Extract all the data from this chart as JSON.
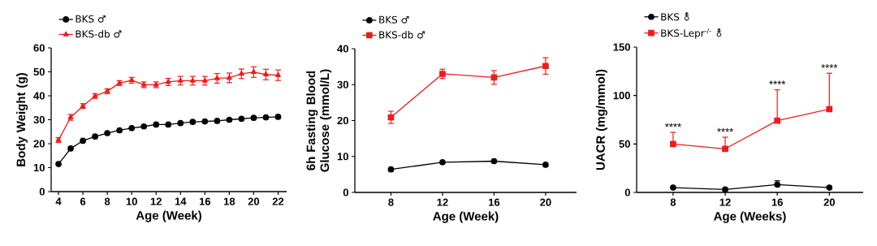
{
  "chart_data": [
    {
      "type": "line",
      "xlabel": "Age (Week)",
      "ylabel": "Body Weight (g)",
      "xlim": [
        3.4,
        22.7
      ],
      "ylim": [
        0,
        60
      ],
      "xticks": [
        4,
        6,
        8,
        10,
        12,
        14,
        16,
        18,
        20,
        22
      ],
      "yticks": [
        0,
        10,
        20,
        30,
        40,
        50,
        60
      ],
      "legend": "top left",
      "grid": false,
      "x": [
        4,
        5,
        6,
        7,
        8,
        9,
        10,
        11,
        12,
        13,
        14,
        15,
        16,
        17,
        18,
        19,
        20,
        21,
        22
      ],
      "series": [
        {
          "name": "BKS ♂",
          "color": "#000000",
          "marker": "circle",
          "values": [
            11.5,
            18,
            21.2,
            23,
            24.4,
            25.6,
            26.5,
            27.2,
            28,
            28,
            28.6,
            29.1,
            29.3,
            29.5,
            30,
            30.4,
            30.8,
            31,
            31.2
          ]
        },
        {
          "name": "BKS-db ♂",
          "color": "#ee1c1c",
          "marker": "triangle",
          "values": [
            21.5,
            31,
            35.7,
            39.9,
            41.9,
            45.3,
            46.5,
            44.6,
            44.6,
            45.8,
            46.3,
            46.3,
            46.3,
            47.3,
            47.5,
            49.2,
            49.9,
            48.9,
            48.6
          ],
          "errors": [
            1,
            1.2,
            1,
            1,
            1,
            1,
            1.2,
            1.2,
            1.2,
            1.5,
            1.8,
            1.8,
            1.8,
            2,
            2,
            2,
            2.2,
            2.2,
            2.2
          ]
        }
      ]
    },
    {
      "type": "line",
      "xlabel": "Age (Week)",
      "ylabel": "6h Fasting Blood Glucose (mmol/L)",
      "xlim": [
        5.2,
        22.4
      ],
      "ylim": [
        0,
        40
      ],
      "xticks": [
        8,
        12,
        16,
        20
      ],
      "yticks": [
        0,
        10,
        20,
        30,
        40
      ],
      "legend": "top left",
      "grid": false,
      "x": [
        8,
        12,
        16,
        20
      ],
      "series": [
        {
          "name": "BKS ♂",
          "color": "#000000",
          "marker": "circle",
          "values": [
            6.4,
            8.4,
            8.7,
            7.7
          ]
        },
        {
          "name": "BKS-db ♂",
          "color": "#ee1c1c",
          "marker": "square",
          "values": [
            20.9,
            33,
            32,
            35.2
          ],
          "errors": [
            1.7,
            1.3,
            1.9,
            2.3
          ]
        }
      ]
    },
    {
      "type": "line",
      "xlabel": "Age (Weeks)",
      "ylabel": "UACR (mg/mmol)",
      "xlim": [
        5.2,
        22.6
      ],
      "ylim": [
        0,
        150
      ],
      "xticks": [
        8,
        12,
        16,
        20
      ],
      "yticks": [
        0,
        50,
        100,
        150
      ],
      "legend": "top left",
      "grid": false,
      "x": [
        8,
        12,
        16,
        20
      ],
      "series": [
        {
          "name": "BKS ⚨",
          "color": "#000000",
          "marker": "circle",
          "values": [
            5,
            3,
            8,
            5
          ],
          "errors": [
            null,
            null,
            [
              8,
              12
            ],
            null
          ]
        },
        {
          "name": "BKS-Lepr$^{-/-}$ ⚨",
          "color": "#ee1c1c",
          "marker": "square",
          "values": [
            50,
            45,
            74,
            86
          ],
          "errors": [
            [
              50,
              62
            ],
            [
              45,
              57
            ],
            [
              74,
              106
            ],
            [
              86,
              123
            ]
          ]
        }
      ],
      "annotations": [
        {
          "text": "****",
          "x": 8,
          "y": 62
        },
        {
          "text": "****",
          "x": 12,
          "y": 57
        },
        {
          "text": "****",
          "x": 16,
          "y": 106
        },
        {
          "text": "****",
          "x": 20,
          "y": 123
        }
      ]
    }
  ]
}
